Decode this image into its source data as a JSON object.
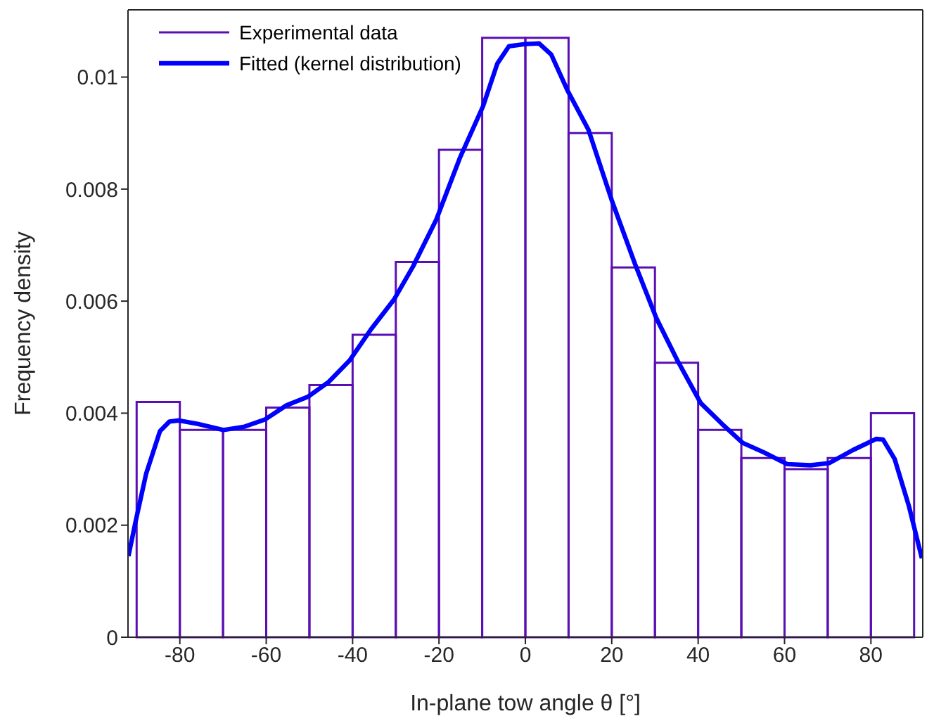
{
  "chart_data": {
    "type": "histogram",
    "xlabel": "In-plane tow angle θ [°]",
    "ylabel": "Frequency density",
    "xlim": [
      -92,
      92
    ],
    "xticks": [
      -80,
      -60,
      -40,
      -20,
      0,
      20,
      40,
      60,
      80
    ],
    "ylim": [
      0,
      0.0112
    ],
    "yticks": [
      0,
      0.002,
      0.004,
      0.006,
      0.008,
      0.01
    ],
    "grid": false,
    "legend": "top left",
    "series": [
      {
        "name": "Experimental data",
        "color": "#5a0fb4",
        "bins": [
          -90,
          -80,
          -70,
          -60,
          -50,
          -40,
          -30,
          -20,
          -10,
          0,
          10,
          20,
          30,
          40,
          50,
          60,
          70,
          80,
          90
        ],
        "values": [
          0.0042,
          0.0037,
          0.0037,
          0.0041,
          0.0045,
          0.0054,
          0.0067,
          0.0087,
          0.0107,
          0.0107,
          0.009,
          0.0066,
          0.0049,
          0.0037,
          0.0032,
          0.003,
          0.0032,
          0.004
        ]
      },
      {
        "name": "Fitted (kernel distribution)",
        "type": "line",
        "color": "#0000ff",
        "x": [
          -91.9,
          -90.2,
          -87.8,
          -84.6,
          -82.4,
          -80.2,
          -75.9,
          -69.9,
          -65.0,
          -60.2,
          -55.3,
          -50.4,
          -45.5,
          -40.7,
          -35.8,
          -30.4,
          -26.0,
          -20.6,
          -15.2,
          -9.8,
          -6.5,
          -3.8,
          0,
          3.2,
          6.0,
          9.7,
          14.6,
          20.0,
          25.4,
          30.3,
          35.2,
          40.6,
          45.5,
          50.3,
          55.2,
          60.6,
          66.0,
          70.4,
          75.8,
          81.2,
          82.8,
          85.5,
          88.8,
          91.8
        ],
        "values": [
          0.00145,
          0.00208,
          0.00292,
          0.00368,
          0.00385,
          0.00387,
          0.00381,
          0.0037,
          0.00376,
          0.00389,
          0.00414,
          0.00429,
          0.00456,
          0.00494,
          0.00549,
          0.00603,
          0.00662,
          0.00746,
          0.00855,
          0.00948,
          0.01024,
          0.01055,
          0.01059,
          0.0106,
          0.0104,
          0.00977,
          0.00906,
          0.0078,
          0.00666,
          0.0057,
          0.00494,
          0.00418,
          0.00381,
          0.00347,
          0.0033,
          0.00309,
          0.00307,
          0.00311,
          0.00334,
          0.00354,
          0.00353,
          0.00318,
          0.00234,
          0.00141
        ],
        "line_style": "solid",
        "marker": "none"
      }
    ]
  }
}
